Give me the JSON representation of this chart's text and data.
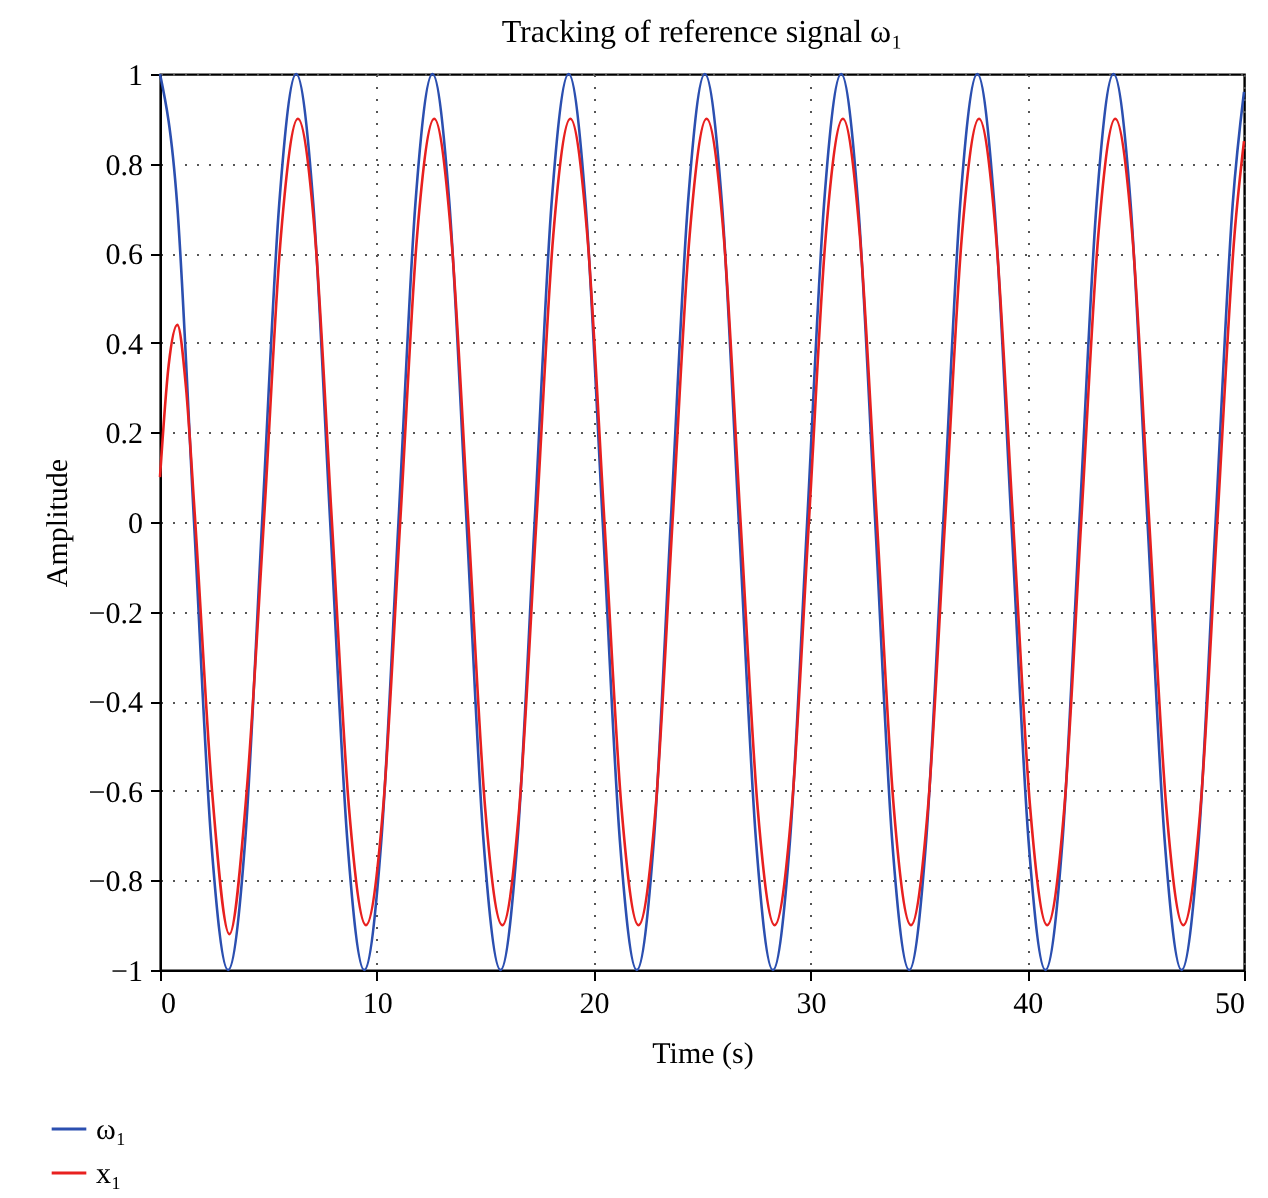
{
  "chart_data": {
    "type": "line",
    "title": "Tracking of reference signal ω₁",
    "xlabel": "Time (s)",
    "ylabel": "Amplitude",
    "xlim": [
      0,
      50
    ],
    "ylim": [
      -1,
      1
    ],
    "xticks": [
      0,
      10,
      20,
      30,
      40,
      50
    ],
    "yticks": [
      -1,
      -0.8,
      -0.6,
      -0.4,
      -0.2,
      0,
      0.2,
      0.4,
      0.6,
      0.8,
      1
    ],
    "grid": true,
    "legend": "bottom left",
    "line_style": "solid",
    "marker": "none",
    "series": [
      {
        "name": "ω₁",
        "color": "#2b4fb0",
        "x": [
          0,
          0.79,
          1.57,
          2.36,
          3.14,
          3.93,
          4.71,
          5.5,
          6.28,
          7.07,
          7.85,
          8.64,
          9.42,
          10.21,
          11.0,
          11.78,
          12.57,
          13.35,
          14.14,
          14.92,
          15.71,
          16.49,
          17.28,
          18.06,
          18.85,
          19.63,
          20.42,
          21.21,
          21.99,
          22.78,
          23.56,
          24.35,
          25.13,
          25.92,
          26.7,
          27.49,
          28.27,
          29.06,
          29.85,
          30.63,
          31.42,
          32.2,
          32.99,
          33.77,
          34.56,
          35.34,
          36.13,
          36.91,
          37.7,
          38.48,
          39.27,
          40.06,
          40.84,
          41.63,
          42.41,
          43.2,
          43.98,
          44.77,
          45.55,
          46.34,
          47.12,
          47.91,
          48.69,
          49.48,
          50
        ],
        "values": [
          1,
          0.71,
          0,
          -0.71,
          -1,
          -0.71,
          0,
          0.71,
          1,
          0.71,
          0,
          -0.71,
          -1,
          -0.71,
          0,
          0.71,
          1,
          0.71,
          0,
          -0.71,
          -1,
          -0.71,
          0,
          0.71,
          1,
          0.71,
          0,
          -0.71,
          -1,
          -0.71,
          0,
          0.71,
          1,
          0.71,
          0,
          -0.71,
          -1,
          -0.71,
          0,
          0.71,
          1,
          0.71,
          0,
          -0.71,
          -1,
          -0.71,
          0,
          0.71,
          1,
          0.71,
          0,
          -0.71,
          -1,
          -0.71,
          0,
          0.71,
          1,
          0.71,
          0,
          -0.71,
          -1,
          -0.71,
          0,
          0.71,
          0.96
        ]
      },
      {
        "name": "x₁",
        "color": "#e8201f",
        "x": [
          0,
          0.4,
          0.8,
          1.2,
          1.6,
          2.4,
          3.2,
          4.0,
          4.79,
          5.58,
          6.36,
          7.15,
          7.93,
          8.72,
          9.5,
          10.29,
          11.08,
          11.86,
          12.65,
          13.43,
          14.22,
          15.0,
          15.79,
          16.57,
          17.36,
          18.14,
          18.93,
          19.71,
          20.5,
          21.29,
          22.07,
          22.86,
          23.64,
          24.43,
          25.21,
          26.0,
          26.78,
          27.57,
          28.35,
          29.14,
          29.93,
          30.71,
          31.5,
          32.28,
          33.07,
          33.85,
          34.64,
          35.42,
          36.21,
          36.99,
          37.78,
          38.56,
          39.35,
          40.14,
          40.92,
          41.71,
          42.49,
          43.28,
          44.06,
          44.85,
          45.63,
          46.42,
          47.2,
          47.99,
          48.77,
          49.56,
          50
        ],
        "values": [
          0.1,
          0.35,
          0.44,
          0.3,
          0.02,
          -0.6,
          -0.92,
          -0.6,
          0,
          0.64,
          0.9,
          0.64,
          0,
          -0.64,
          -0.9,
          -0.64,
          0,
          0.64,
          0.9,
          0.64,
          0,
          -0.64,
          -0.9,
          -0.64,
          0,
          0.64,
          0.9,
          0.64,
          0,
          -0.64,
          -0.9,
          -0.64,
          0,
          0.64,
          0.9,
          0.64,
          0,
          -0.64,
          -0.9,
          -0.64,
          0,
          0.64,
          0.9,
          0.64,
          0,
          -0.64,
          -0.9,
          -0.64,
          0,
          0.64,
          0.9,
          0.64,
          0,
          -0.64,
          -0.9,
          -0.64,
          0,
          0.64,
          0.9,
          0.64,
          0,
          -0.64,
          -0.9,
          -0.64,
          0,
          0.64,
          0.85
        ]
      }
    ]
  }
}
